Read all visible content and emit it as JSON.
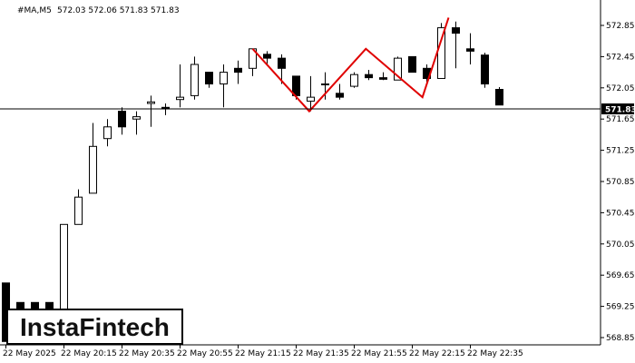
{
  "header": {
    "symbol": "#MA,M5",
    "ohlc": "572.03 572.06 571.83 571.83"
  },
  "watermark": {
    "text": "InstaFintech"
  },
  "current_price_label": "571.83",
  "colors": {
    "background": "#ffffff",
    "candle": "#000000",
    "pattern": "#e00000",
    "price_line": "#000000",
    "badge_bg": "#000000"
  },
  "chart_data": {
    "type": "candlestick",
    "title": "#MA,M5",
    "ylim": [
      568.8,
      572.98
    ],
    "y_ticks": [
      "572.95",
      "572.60",
      "572.25",
      "571.90",
      "571.55",
      "571.20",
      "570.85",
      "570.50",
      "570.15",
      "569.80",
      "569.45",
      "569.10",
      "568.75"
    ],
    "y_ticks_in_view": [
      "572.85",
      "572.45",
      "572.05",
      "571.65",
      "571.25",
      "570.85",
      "570.45",
      "570.05",
      "569.65",
      "569.25",
      "568.85"
    ],
    "x_labels": [
      "22 May 2025",
      "22 May 20:15",
      "22 May 20:35",
      "22 May 20:55",
      "22 May 21:15",
      "22 May 21:35",
      "22 May 21:55",
      "22 May 22:15",
      "22 May 22:35"
    ],
    "current_price": 571.83,
    "candles": [
      {
        "o": 569.55,
        "h": 569.55,
        "l": 568.8,
        "c": 568.8
      },
      {
        "o": 569.3,
        "h": 569.3,
        "l": 568.8,
        "c": 568.8
      },
      {
        "o": 569.3,
        "h": 569.3,
        "l": 568.8,
        "c": 568.8
      },
      {
        "o": 569.3,
        "h": 569.3,
        "l": 568.8,
        "c": 568.8
      },
      {
        "o": 568.8,
        "h": 570.3,
        "l": 568.8,
        "c": 570.3
      },
      {
        "o": 570.3,
        "h": 570.75,
        "l": 570.3,
        "c": 570.65
      },
      {
        "o": 570.7,
        "h": 571.6,
        "l": 570.7,
        "c": 571.3
      },
      {
        "o": 571.4,
        "h": 571.65,
        "l": 571.3,
        "c": 571.55
      },
      {
        "o": 571.75,
        "h": 571.8,
        "l": 571.45,
        "c": 571.55
      },
      {
        "o": 571.65,
        "h": 571.75,
        "l": 571.45,
        "c": 571.68
      },
      {
        "o": 571.85,
        "h": 571.95,
        "l": 571.55,
        "c": 571.87
      },
      {
        "o": 571.8,
        "h": 571.85,
        "l": 571.7,
        "c": 571.78
      },
      {
        "o": 571.9,
        "h": 572.35,
        "l": 571.8,
        "c": 571.93
      },
      {
        "o": 571.95,
        "h": 572.45,
        "l": 571.9,
        "c": 572.35
      },
      {
        "o": 572.25,
        "h": 572.25,
        "l": 572.05,
        "c": 572.1
      },
      {
        "o": 572.1,
        "h": 572.35,
        "l": 571.8,
        "c": 572.25
      },
      {
        "o": 572.3,
        "h": 572.4,
        "l": 572.1,
        "c": 572.25
      },
      {
        "o": 572.3,
        "h": 572.55,
        "l": 572.2,
        "c": 572.55
      },
      {
        "o": 572.48,
        "h": 572.52,
        "l": 572.35,
        "c": 572.43
      },
      {
        "o": 572.43,
        "h": 572.48,
        "l": 572.1,
        "c": 572.3
      },
      {
        "o": 572.2,
        "h": 572.2,
        "l": 571.9,
        "c": 571.95
      },
      {
        "o": 571.88,
        "h": 572.2,
        "l": 571.75,
        "c": 571.93
      },
      {
        "o": 572.1,
        "h": 572.25,
        "l": 571.9,
        "c": 572.1
      },
      {
        "o": 571.98,
        "h": 572.1,
        "l": 571.9,
        "c": 571.93
      },
      {
        "o": 572.07,
        "h": 572.25,
        "l": 572.05,
        "c": 572.22
      },
      {
        "o": 572.22,
        "h": 572.28,
        "l": 572.15,
        "c": 572.18
      },
      {
        "o": 572.18,
        "h": 572.25,
        "l": 572.15,
        "c": 572.16
      },
      {
        "o": 572.15,
        "h": 572.45,
        "l": 572.15,
        "c": 572.43
      },
      {
        "o": 572.45,
        "h": 572.45,
        "l": 572.25,
        "c": 572.25
      },
      {
        "o": 572.3,
        "h": 572.35,
        "l": 572.1,
        "c": 572.17
      },
      {
        "o": 572.17,
        "h": 572.88,
        "l": 572.17,
        "c": 572.82
      },
      {
        "o": 572.82,
        "h": 572.9,
        "l": 572.3,
        "c": 572.75
      },
      {
        "o": 572.55,
        "h": 572.75,
        "l": 572.35,
        "c": 572.52
      },
      {
        "o": 572.47,
        "h": 572.5,
        "l": 572.05,
        "c": 572.1
      },
      {
        "o": 572.03,
        "h": 572.06,
        "l": 571.83,
        "c": 571.83
      }
    ],
    "pattern": [
      {
        "i": 17.0,
        "p": 572.55
      },
      {
        "i": 20.9,
        "p": 571.75
      },
      {
        "i": 24.8,
        "p": 572.55
      },
      {
        "i": 28.7,
        "p": 571.93
      },
      {
        "i": 30.5,
        "p": 572.95
      }
    ]
  }
}
